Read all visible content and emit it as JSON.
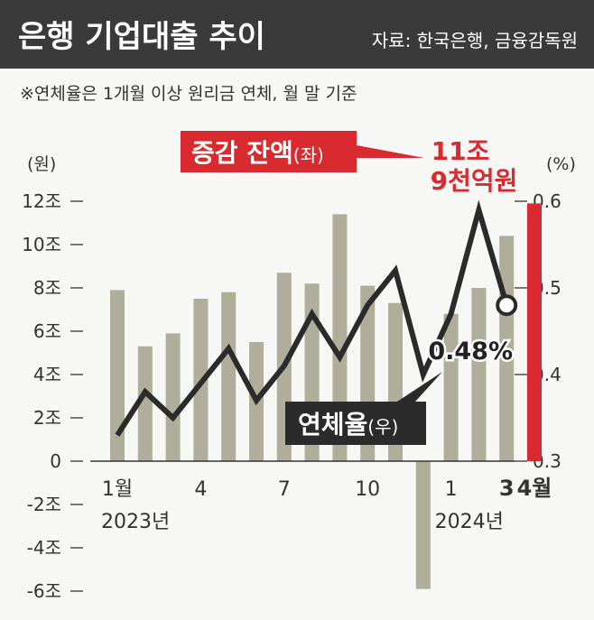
{
  "header": {
    "title": "은행 기업대출 추이",
    "source": "자료: 한국은행, 금융감독원"
  },
  "note": "※연체율은 1개월 이상 원리금 연체, 월 말 기준",
  "chart_data": {
    "type": "bar+line",
    "left_axis": {
      "unit_label": "(원)",
      "ylim": [
        -6,
        12
      ],
      "ticks": [
        12,
        10,
        8,
        6,
        4,
        2,
        0,
        -2,
        -4,
        -6
      ],
      "tick_labels": [
        "12조",
        "10조",
        "8조",
        "6조",
        "4조",
        "2조",
        "0",
        "-2조",
        "-4조",
        "-6조"
      ]
    },
    "right_axis": {
      "unit_label": "(%)",
      "ylim": [
        0.3,
        0.6
      ],
      "ticks": [
        0.6,
        0.5,
        0.4,
        0.3
      ],
      "tick_labels": [
        "0.6",
        "0.5",
        "0.4",
        "0.3"
      ]
    },
    "x_labels": [
      {
        "index": 0,
        "text": "1월"
      },
      {
        "index": 3,
        "text": "4"
      },
      {
        "index": 6,
        "text": "7"
      },
      {
        "index": 9,
        "text": "10"
      },
      {
        "index": 12,
        "text": "1"
      },
      {
        "index": 14,
        "text": "3"
      },
      {
        "index": 15,
        "text": "4월"
      }
    ],
    "year_labels": [
      {
        "index": 0,
        "text": "2023년"
      },
      {
        "index": 12,
        "text": "2024년"
      }
    ],
    "months": [
      "2023-01",
      "2023-02",
      "2023-03",
      "2023-04",
      "2023-05",
      "2023-06",
      "2023-07",
      "2023-08",
      "2023-09",
      "2023-10",
      "2023-11",
      "2023-12",
      "2024-01",
      "2024-02",
      "2024-03",
      "2024-04"
    ],
    "series": [
      {
        "name": "증감 잔액(좌)",
        "type": "bar",
        "axis": "left",
        "values": [
          7.9,
          5.3,
          5.9,
          7.5,
          7.8,
          5.5,
          8.7,
          8.2,
          11.4,
          8.1,
          7.3,
          -5.9,
          6.8,
          8.0,
          10.4,
          11.9
        ],
        "color": "#b1ad9b",
        "highlight_color": "#d92b2f"
      },
      {
        "name": "연체율(우)",
        "type": "line",
        "axis": "right",
        "values": [
          0.33,
          0.38,
          0.35,
          0.39,
          0.43,
          0.37,
          0.41,
          0.47,
          0.42,
          0.48,
          0.52,
          0.4,
          0.47,
          0.59,
          0.48
        ],
        "color": "#2b2b2b"
      }
    ],
    "annotations": {
      "bar_label": "증감 잔액",
      "bar_label_suffix": "(좌)",
      "bar_value_line1": "11조",
      "bar_value_line2": "9천억원",
      "line_label": "연체율",
      "line_label_suffix": "(우)",
      "line_value": "0.48%"
    },
    "colors": {
      "header_bg": "#3a3a3a",
      "header_text": "#ffffff",
      "accent_red": "#d92b2f",
      "bar": "#b1ad9b",
      "line": "#2b2b2b",
      "text": "#333333"
    }
  }
}
